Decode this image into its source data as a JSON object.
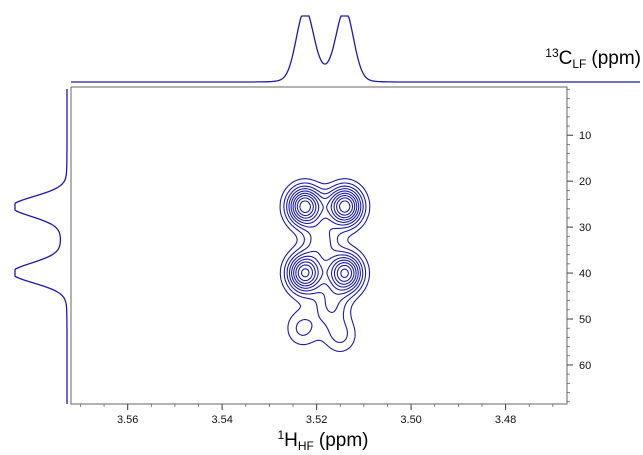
{
  "chart_data": {
    "type": "contour",
    "x_axis": {
      "label_main": "H",
      "label_sup": "1",
      "label_sub": "HF",
      "label_unit": "(ppm)",
      "range": [
        3.572,
        3.467
      ],
      "reversed": true,
      "ticks": [
        3.56,
        3.54,
        3.52,
        3.5,
        3.48
      ],
      "tick_labels": [
        "3.56",
        "3.54",
        "3.52",
        "3.50",
        "3.48"
      ]
    },
    "y_axis": {
      "label_main": "C",
      "label_sup": "13",
      "label_sub": "LF",
      "label_unit": "(ppm)",
      "range": [
        -0.5,
        68.5
      ],
      "ticks": [
        10,
        20,
        30,
        40,
        50,
        60
      ],
      "tick_labels": [
        "10",
        "20",
        "30",
        "40",
        "50",
        "60"
      ],
      "position": "right"
    },
    "peaks": [
      {
        "x": 3.5225,
        "y": 25.5,
        "intensity": 1.0
      },
      {
        "x": 3.514,
        "y": 25.5,
        "intensity": 1.0
      },
      {
        "x": 3.5225,
        "y": 40.0,
        "intensity": 0.95
      },
      {
        "x": 3.514,
        "y": 40.0,
        "intensity": 0.95
      },
      {
        "x": 3.519,
        "y": 33.0,
        "intensity": 0.35
      },
      {
        "x": 3.517,
        "y": 47.0,
        "intensity": 0.3
      },
      {
        "x": 3.523,
        "y": 52.0,
        "intensity": 0.25
      },
      {
        "x": 3.515,
        "y": 53.5,
        "intensity": 0.25
      }
    ],
    "contour_levels": 9,
    "top_projection": {
      "x": [
        3.5225,
        3.514
      ],
      "peak_heights": [
        1.0,
        1.0
      ]
    },
    "left_projection": {
      "y": [
        25.5,
        40.0
      ],
      "peak_heights": [
        1.0,
        1.0
      ]
    },
    "grid": false,
    "colors": {
      "contour": "#1c1ca8",
      "frame": "#555555"
    }
  }
}
